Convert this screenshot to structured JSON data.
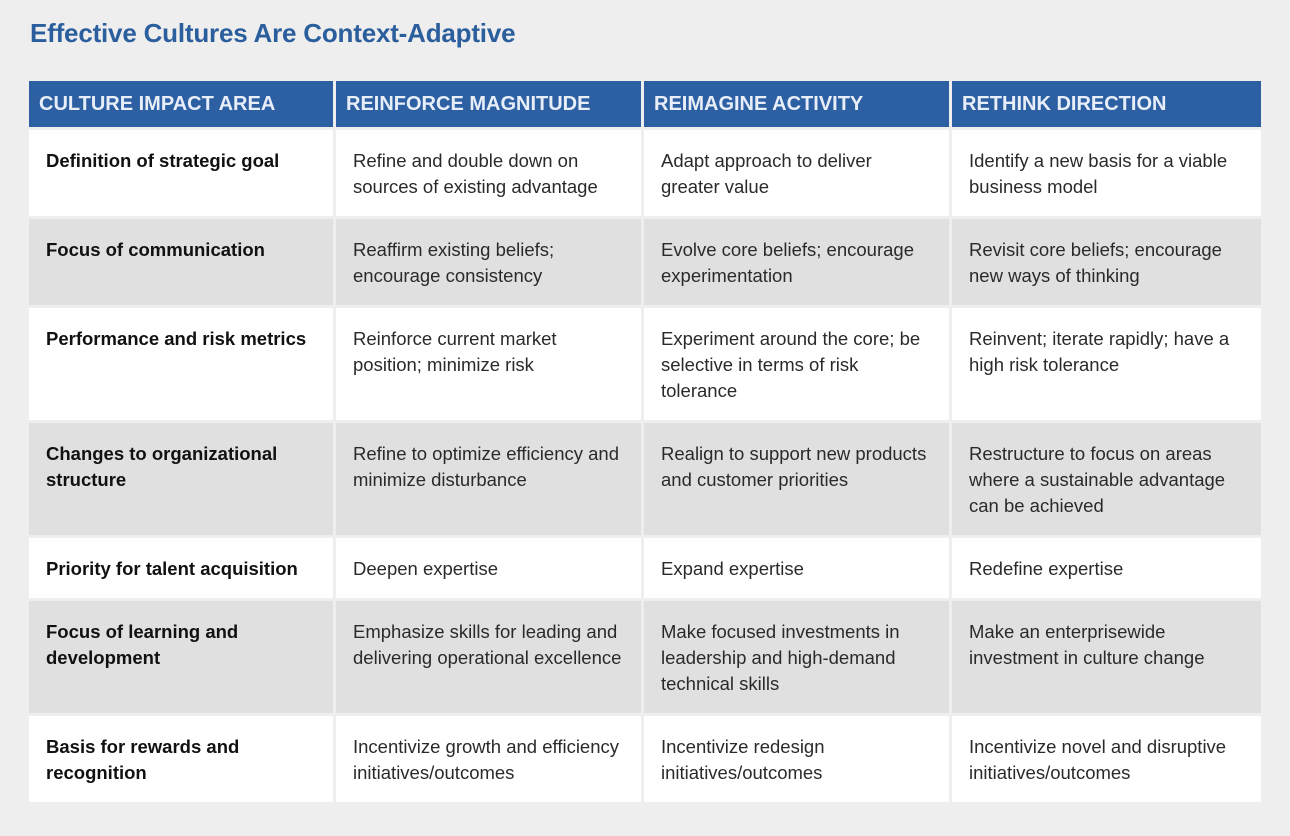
{
  "title": "Effective Cultures Are Context-Adaptive",
  "colors": {
    "title": "#2b5e9c",
    "header_bg": "#2d5fa3",
    "row_alt_bg": "#e0e0e0"
  },
  "table": {
    "headers": [
      "CULTURE IMPACT AREA",
      "REINFORCE MAGNITUDE",
      "REIMAGINE ACTIVITY",
      "RETHINK DIRECTION"
    ],
    "rows": [
      [
        "Definition of strategic goal",
        "Refine and double down on sources of existing advantage",
        "Adapt approach to deliver greater value",
        "Identify a new basis for a viable business model"
      ],
      [
        "Focus of communication",
        "Reaffirm existing beliefs; encourage consistency",
        "Evolve core beliefs; encourage experimentation",
        "Revisit core beliefs; encourage new ways of thinking"
      ],
      [
        "Performance and risk metrics",
        "Reinforce current market position; minimize risk",
        "Experiment around the core; be selective in terms of risk tolerance",
        "Reinvent; iterate rapidly; have a high risk tolerance"
      ],
      [
        "Changes to organizational structure",
        "Refine to optimize efficiency and minimize disturbance",
        "Realign to support new products and customer priorities",
        "Restructure to focus on areas where a sustainable advantage can be achieved"
      ],
      [
        "Priority for talent acquisition",
        "Deepen expertise",
        "Expand expertise",
        "Redefine expertise"
      ],
      [
        "Focus of learning and development",
        "Emphasize skills for leading and delivering operational excellence",
        "Make focused investments in leadership and high-demand technical skills",
        "Make an enterprisewide investment in culture change"
      ],
      [
        "Basis for rewards and recognition",
        "Incentivize growth and efficiency initiatives/outcomes",
        "Incentivize redesign initiatives/outcomes",
        "Incentivize novel and disruptive initiatives/outcomes"
      ]
    ]
  }
}
